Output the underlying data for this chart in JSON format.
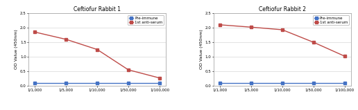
{
  "chart1": {
    "title": "Ceftiofur Rabbit 1",
    "pre_immune": [
      0.1,
      0.1,
      0.1,
      0.1,
      0.1
    ],
    "anti_serum": [
      1.85,
      1.6,
      1.25,
      0.55,
      0.27
    ],
    "ylim": [
      0,
      2.5
    ],
    "yticks": [
      0.0,
      0.5,
      1.0,
      1.5,
      2.0,
      2.5
    ]
  },
  "chart2": {
    "title": "Ceftiofur Rabbit 2",
    "pre_immune": [
      0.1,
      0.1,
      0.1,
      0.1,
      0.1
    ],
    "anti_serum": [
      2.1,
      2.02,
      1.93,
      1.5,
      1.02
    ],
    "ylim": [
      0,
      2.5
    ],
    "yticks": [
      0.0,
      0.5,
      1.0,
      1.5,
      2.0,
      2.5
    ]
  },
  "xtick_labels": [
    "1/1,000",
    "1/5,000",
    "1/10,000",
    "1/50,000",
    "1/100,000"
  ],
  "ylabel": "OD Value (450nm)",
  "pre_immune_color": "#4472C4",
  "anti_serum_color": "#BE4B48",
  "legend_pre": "Pre-immune",
  "legend_anti": "1st anti-serum",
  "bg_color": "#FFFFFF",
  "plot_bg": "#FFFFFF",
  "border_color": "#AAAAAA",
  "grid_color": "#D8D8D8",
  "title_fontsize": 5.5,
  "tick_fontsize": 4.0,
  "ylabel_fontsize": 4.5,
  "legend_fontsize": 4.0,
  "linewidth": 1.0,
  "markersize": 2.5
}
